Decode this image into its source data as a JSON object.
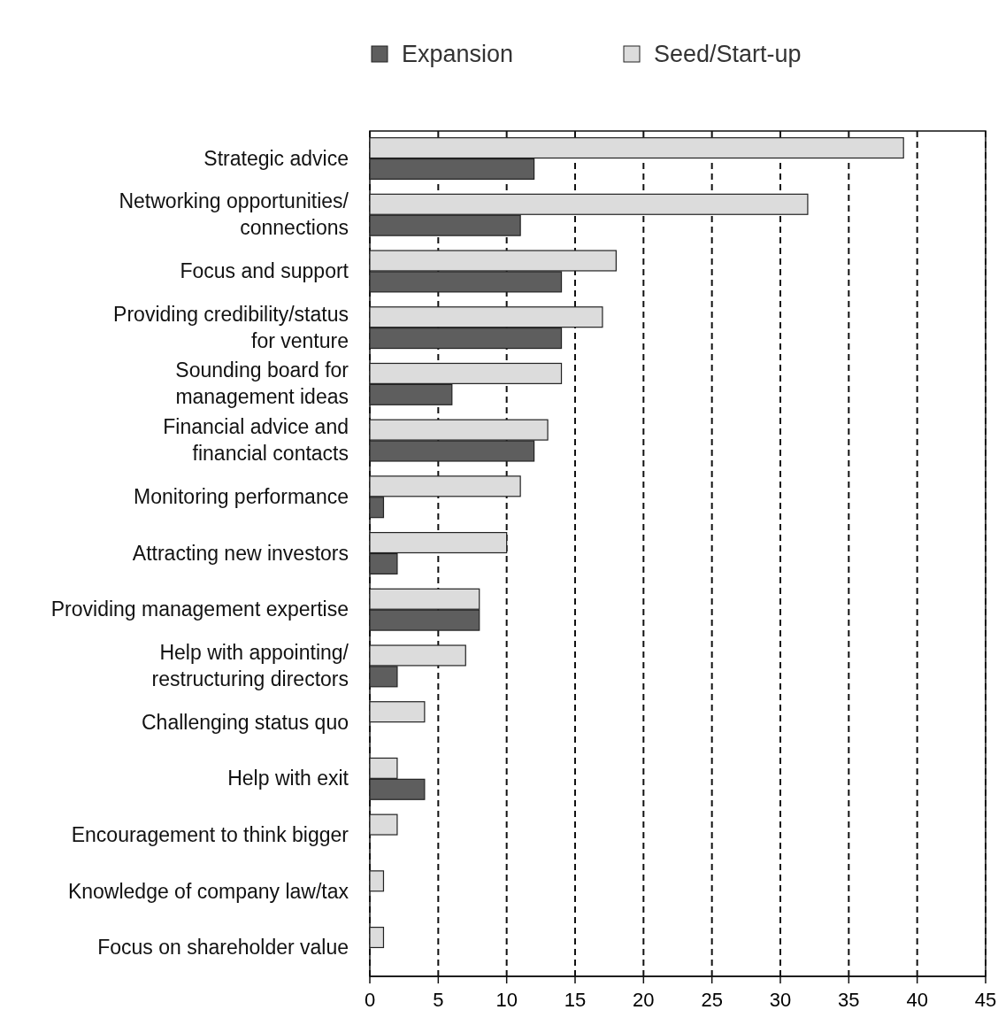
{
  "chart_data": {
    "type": "bar",
    "orientation": "horizontal",
    "categories": [
      "Strategic advice",
      "Networking opportunities/\nconnections",
      "Focus and support",
      "Providing credibility/status\nfor venture",
      "Sounding board for\nmanagement ideas",
      "Financial advice and\nfinancial contacts",
      "Monitoring performance",
      "Attracting new investors",
      "Providing management expertise",
      "Help with appointing/\nrestructuring directors",
      "Challenging status quo",
      "Help with exit",
      "Encouragement to think bigger",
      "Knowledge of company law/tax",
      "Focus on shareholder value"
    ],
    "series": [
      {
        "name": "Seed/Start-up",
        "color": "#dcdcdc",
        "values": [
          39,
          32,
          18,
          17,
          14,
          13,
          11,
          10,
          8,
          7,
          4,
          2,
          2,
          1,
          1
        ]
      },
      {
        "name": "Expansion",
        "color": "#5e5e5e",
        "values": [
          12,
          11,
          14,
          14,
          6,
          12,
          1,
          2,
          8,
          2,
          null,
          4,
          null,
          null,
          null
        ]
      }
    ],
    "xlim": [
      0,
      45
    ],
    "xticks": [
      0,
      5,
      10,
      15,
      20,
      25,
      30,
      35,
      40,
      45
    ],
    "grid": "x",
    "legend": "top"
  }
}
